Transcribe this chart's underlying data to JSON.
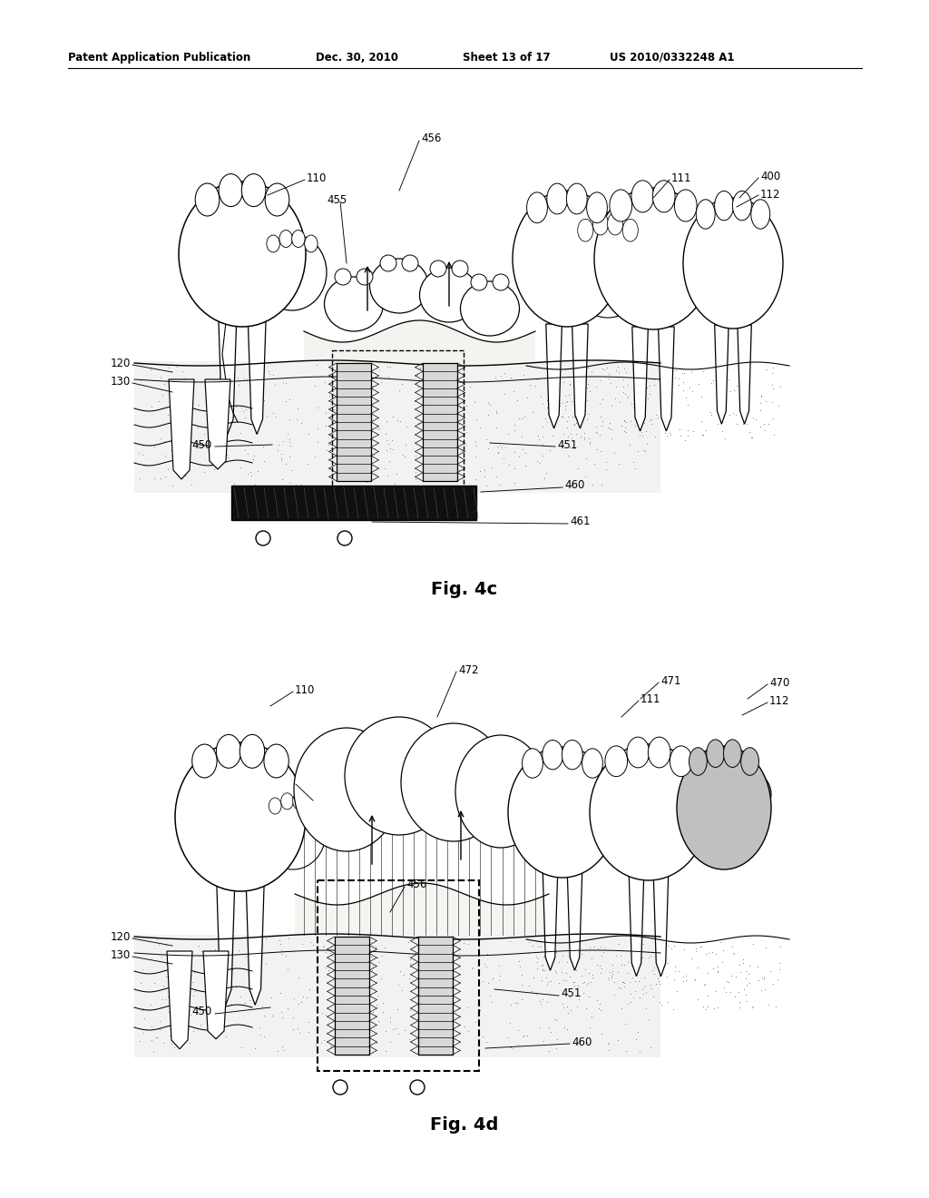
{
  "background_color": "#ffffff",
  "line_color": "#000000",
  "header_left": "Patent Application Publication",
  "header_date": "Dec. 30, 2010",
  "header_sheet": "Sheet 13 of 17",
  "header_right": "US 2010/0332248 A1",
  "fig4c_label": "Fig. 4c",
  "fig4d_label": "Fig. 4d",
  "fig_width": 10.24,
  "fig_height": 13.2,
  "dpi": 100
}
